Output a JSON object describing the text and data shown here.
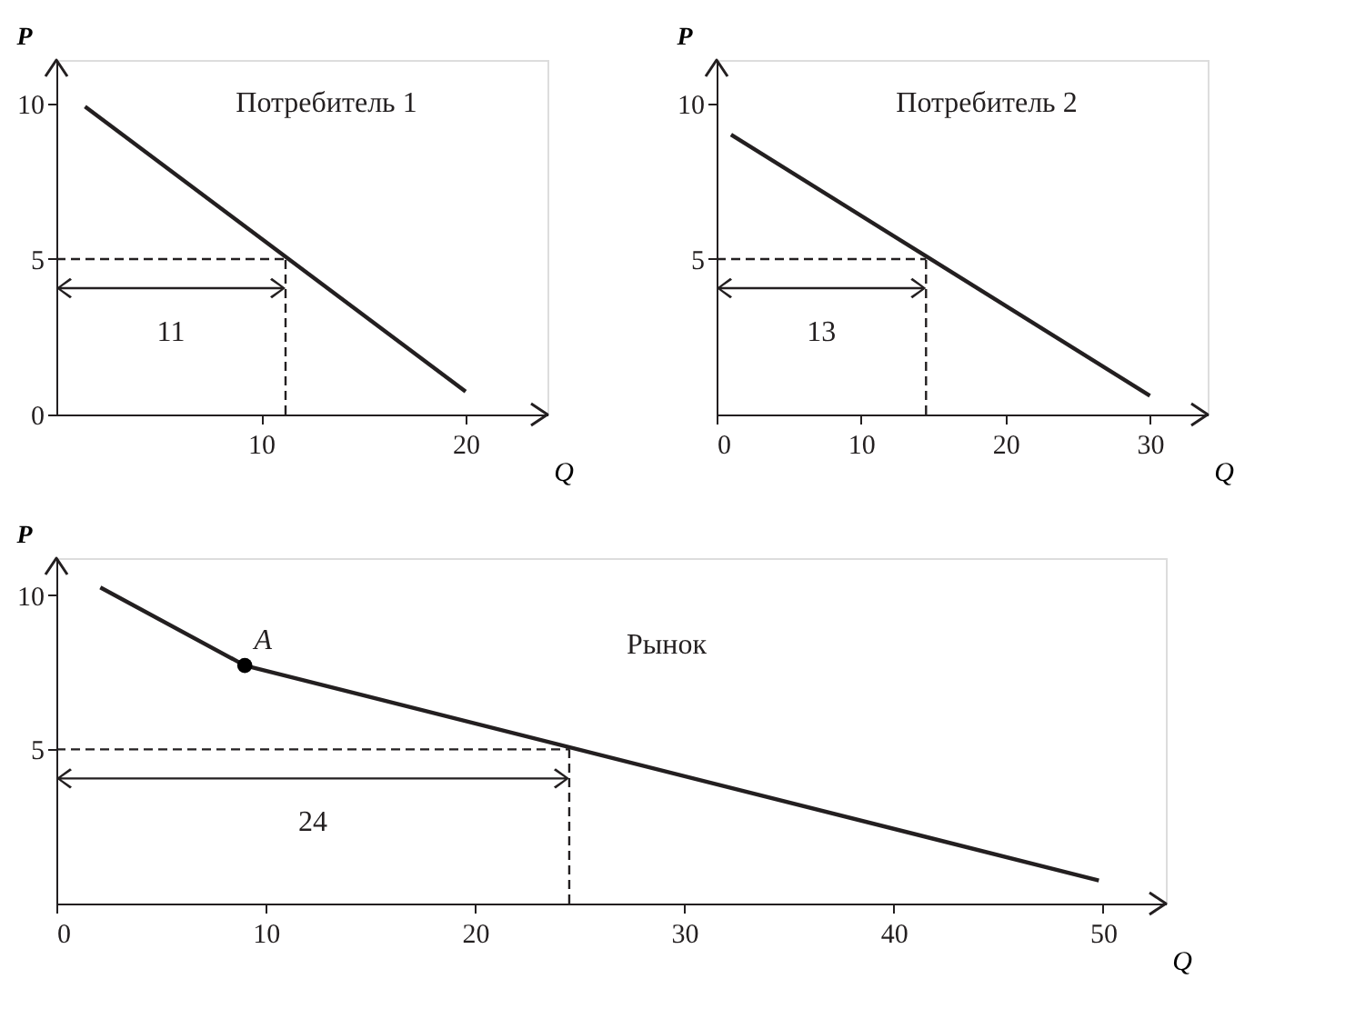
{
  "chart_data": [
    {
      "type": "line",
      "title": "Потребитель 1",
      "xlabel": "Q",
      "ylabel": "P",
      "xlim": [
        0,
        24
      ],
      "ylim": [
        0,
        11.4
      ],
      "xticks": [
        10,
        20
      ],
      "yticks": [
        0,
        5,
        10
      ],
      "series": [
        {
          "x": [
            1.4,
            20
          ],
          "values": [
            9.9,
            0.74
          ],
          "color": "#231f20"
        }
      ],
      "ref_lines": [
        {
          "axis": "y",
          "value": 5,
          "line_style": "dashed"
        },
        {
          "axis": "x",
          "value": 11.2,
          "line_style": "dashed"
        }
      ],
      "annotations": [
        "11"
      ]
    },
    {
      "type": "line",
      "title": "Потребитель 2",
      "xlabel": "Q",
      "ylabel": "P",
      "xlim": [
        0,
        34
      ],
      "ylim": [
        0,
        11.4
      ],
      "xticks": [
        0,
        10,
        20,
        30
      ],
      "yticks": [
        5,
        10
      ],
      "series": [
        {
          "x": [
            1,
            30
          ],
          "values": [
            9.0,
            0.6
          ],
          "color": "#231f20"
        }
      ],
      "ref_lines": [
        {
          "axis": "y",
          "value": 5,
          "line_style": "dashed"
        },
        {
          "axis": "x",
          "value": 14.5,
          "line_style": "dashed"
        }
      ],
      "annotations": [
        "13"
      ]
    },
    {
      "type": "line",
      "title": "Рынок",
      "xlabel": "Q",
      "ylabel": "P",
      "xlim": [
        0,
        53
      ],
      "ylim": [
        0,
        11.2
      ],
      "xticks": [
        0,
        10,
        20,
        30,
        40,
        50
      ],
      "yticks": [
        5,
        10
      ],
      "series": [
        {
          "x": [
            2.1,
            9,
            49.8
          ],
          "values": [
            10.25,
            7.72,
            0.75
          ],
          "color": "#231f20"
        },
        {
          "type": "scatter",
          "x": [
            9
          ],
          "values": [
            7.72
          ],
          "color": "#000000",
          "marker": "circle"
        }
      ],
      "ref_lines": [
        {
          "axis": "y",
          "value": 5,
          "line_style": "dashed"
        },
        {
          "axis": "x",
          "value": 24.5,
          "line_style": "dashed"
        }
      ],
      "annotations": [
        "24",
        {
          "text": "A",
          "x": 9,
          "y": 7.72
        }
      ]
    }
  ]
}
